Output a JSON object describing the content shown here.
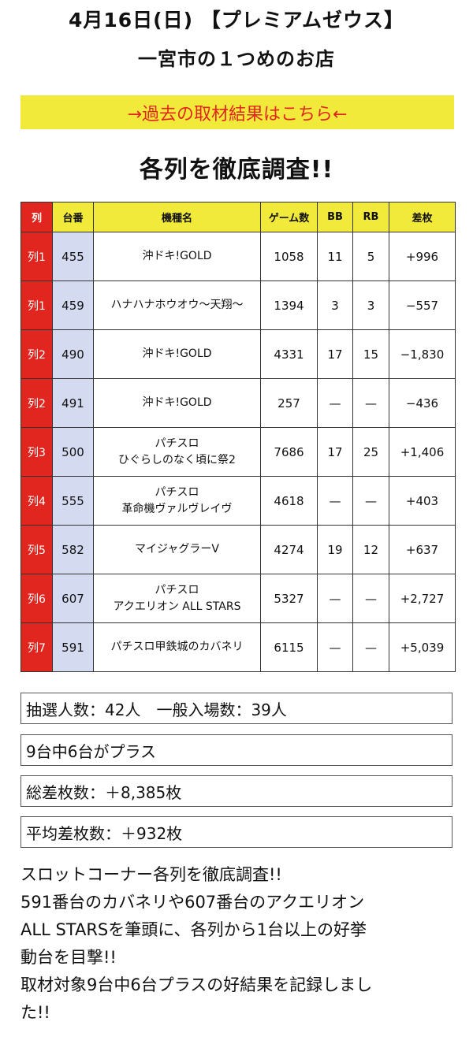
{
  "header": {
    "line1": "4月16日(日) 【プレミアムゼウス】",
    "line2": "一宮市の１つめのお店"
  },
  "banner": {
    "label": "→過去の取材結果はこちら←"
  },
  "section_title": "各列を徹底調査!!",
  "table": {
    "headers": [
      "列",
      "台番",
      "機種名",
      "ゲーム数",
      "BB",
      "RB",
      "差枚"
    ],
    "rows": [
      {
        "retsu": "列1",
        "num": "455",
        "name": [
          "沖ドキ!GOLD"
        ],
        "games": "1058",
        "bb": "11",
        "rb": "5",
        "diff": "+996"
      },
      {
        "retsu": "列1",
        "num": "459",
        "name": [
          "ハナハナホウオウ〜天翔〜"
        ],
        "games": "1394",
        "bb": "3",
        "rb": "3",
        "diff": "−557"
      },
      {
        "retsu": "列2",
        "num": "490",
        "name": [
          "沖ドキ!GOLD"
        ],
        "games": "4331",
        "bb": "17",
        "rb": "15",
        "diff": "−1,830"
      },
      {
        "retsu": "列2",
        "num": "491",
        "name": [
          "沖ドキ!GOLD"
        ],
        "games": "257",
        "bb": "—",
        "rb": "—",
        "diff": "−436"
      },
      {
        "retsu": "列3",
        "num": "500",
        "name": [
          "パチスロ",
          "ひぐらしのなく頃に祭2"
        ],
        "games": "7686",
        "bb": "17",
        "rb": "25",
        "diff": "+1,406"
      },
      {
        "retsu": "列4",
        "num": "555",
        "name": [
          "パチスロ",
          "革命機ヴァルヴレイヴ"
        ],
        "games": "4618",
        "bb": "—",
        "rb": "—",
        "diff": "+403"
      },
      {
        "retsu": "列5",
        "num": "582",
        "name": [
          "マイジャグラーV"
        ],
        "games": "4274",
        "bb": "19",
        "rb": "12",
        "diff": "+637"
      },
      {
        "retsu": "列6",
        "num": "607",
        "name": [
          "パチスロ",
          "アクエリオン ALL STARS"
        ],
        "games": "5327",
        "bb": "—",
        "rb": "—",
        "diff": "+2,727"
      },
      {
        "retsu": "列7",
        "num": "591",
        "name": [
          "パチスロ甲鉄城のカバネリ"
        ],
        "games": "6115",
        "bb": "—",
        "rb": "—",
        "diff": "+5,039"
      }
    ]
  },
  "info": {
    "lottery": "抽選人数：42人　一般入場数：39人",
    "plus_count": "9台中6台がプラス",
    "total_diff": "総差枚数：＋8,385枚",
    "avg_diff": "平均差枚数：＋932枚"
  },
  "summary": [
    "スロットコーナー各列を徹底調査!!",
    "591番台のカバネリや607番台のアクエリオン",
    "ALL STARSを筆頭に、各列から1台以上の好挙",
    "動台を目撃!!",
    "取材対象9台中6台プラスの好結果を記録しまし",
    "た!!"
  ],
  "colors": {
    "accent_red": "#e0261f",
    "accent_yellow": "#f2ea3a",
    "num_column_bg": "#d4daf0"
  }
}
